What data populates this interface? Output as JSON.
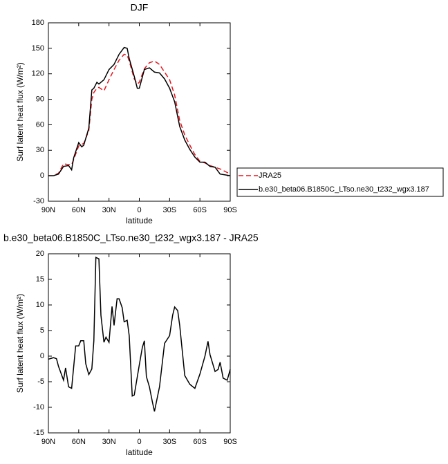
{
  "chart_data": [
    {
      "type": "line",
      "title": "DJF",
      "xlabel": "latitude",
      "ylabel": "Surf latent heat flux (W/m²)",
      "x": [
        90,
        85,
        80,
        75,
        70,
        67,
        65,
        60,
        57,
        55,
        50,
        47,
        45,
        42,
        40,
        35,
        30,
        25,
        20,
        15,
        12,
        10,
        5,
        2,
        0,
        -5,
        -10,
        -15,
        -20,
        -25,
        -30,
        -35,
        -40,
        -45,
        -50,
        -55,
        -60,
        -65,
        -70,
        -75,
        -80,
        -85,
        -90
      ],
      "series": [
        {
          "name": "JRA25",
          "color": "#e8141c",
          "line_style": "dashed",
          "values": [
            0,
            0,
            3,
            14,
            13,
            13,
            19,
            35,
            37,
            38,
            53,
            90,
            98,
            103,
            104,
            100,
            113,
            125,
            136,
            143,
            142,
            135,
            114,
            108,
            110,
            126,
            133,
            135,
            131,
            122,
            113,
            95,
            65,
            48,
            36,
            25,
            17,
            15,
            12,
            10,
            8,
            5,
            2
          ]
        },
        {
          "name": "b.e30_beta06.B1850C_LTso.ne30_t232_wgx3.187",
          "color": "#000000",
          "line_style": "solid",
          "values": [
            0,
            0,
            2,
            11,
            12,
            7,
            21,
            39,
            34,
            36,
            56,
            101,
            103,
            110,
            108,
            113,
            125,
            131,
            143,
            151,
            150,
            138,
            117,
            103,
            103,
            125,
            127,
            122,
            121,
            114,
            103,
            87,
            58,
            42,
            31,
            22,
            16,
            16,
            11,
            10,
            2,
            1,
            0
          ]
        }
      ],
      "xlim": [
        90,
        -90
      ],
      "xticks": [
        {
          "value": 90,
          "label": "90N"
        },
        {
          "value": 60,
          "label": "60N"
        },
        {
          "value": 30,
          "label": "30N"
        },
        0,
        {
          "value": -30,
          "label": "30S"
        },
        {
          "value": -60,
          "label": "60S"
        },
        {
          "value": -90,
          "label": "90S"
        }
      ],
      "ylim": [
        -30,
        180
      ],
      "yticks": [
        -30,
        0,
        30,
        60,
        90,
        120,
        150,
        180
      ],
      "legend": "outside-right"
    },
    {
      "type": "line",
      "title": "b.e30_beta06.B1850C_LTso.ne30_t232_wgx3.187 - JRA25",
      "xlabel": "latitude",
      "ylabel": "Surf latent heat flux (W/m²)",
      "x": [
        90,
        85,
        82,
        80,
        75,
        73,
        70,
        67,
        63,
        60,
        58,
        55,
        53,
        50,
        47,
        45,
        43,
        40,
        38,
        35,
        33,
        30,
        27,
        25,
        22,
        20,
        17,
        15,
        12,
        10,
        7,
        5,
        0,
        -3,
        -5,
        -7,
        -10,
        -13,
        -15,
        -20,
        -25,
        -30,
        -33,
        -35,
        -38,
        -40,
        -45,
        -50,
        -55,
        -60,
        -65,
        -68,
        -70,
        -75,
        -78,
        -80,
        -83,
        -87,
        -90
      ],
      "series": [
        {
          "color": "#000000",
          "line_style": "solid",
          "values": [
            -0.6,
            -0.3,
            -0.5,
            -2,
            -4.7,
            -2.3,
            -6,
            -6.3,
            2,
            2,
            3,
            3,
            -1.5,
            -3.6,
            -2.5,
            3,
            19.3,
            19,
            8,
            2.7,
            3.7,
            2.7,
            9.7,
            6,
            11.2,
            11.2,
            9.5,
            6.7,
            7,
            4,
            -7.8,
            -7.6,
            -1.7,
            1.7,
            3,
            -4,
            -6,
            -9,
            -10.8,
            -6,
            2.5,
            4,
            8,
            9.6,
            8.9,
            6,
            -3.8,
            -5.5,
            -6.3,
            -3.5,
            0,
            2.9,
            0.3,
            -3,
            -2.6,
            -1.2,
            -4.3,
            -4.7,
            -2.6
          ]
        }
      ],
      "xlim": [
        90,
        -90
      ],
      "xticks": [
        {
          "value": 90,
          "label": "90N"
        },
        {
          "value": 60,
          "label": "60N"
        },
        {
          "value": 30,
          "label": "30N"
        },
        0,
        {
          "value": -30,
          "label": "30S"
        },
        {
          "value": -60,
          "label": "60S"
        },
        {
          "value": -90,
          "label": "90S"
        }
      ],
      "ylim": [
        -15,
        20
      ],
      "yticks": [
        -15,
        -10,
        -5,
        0,
        5,
        10,
        15,
        20
      ]
    }
  ]
}
